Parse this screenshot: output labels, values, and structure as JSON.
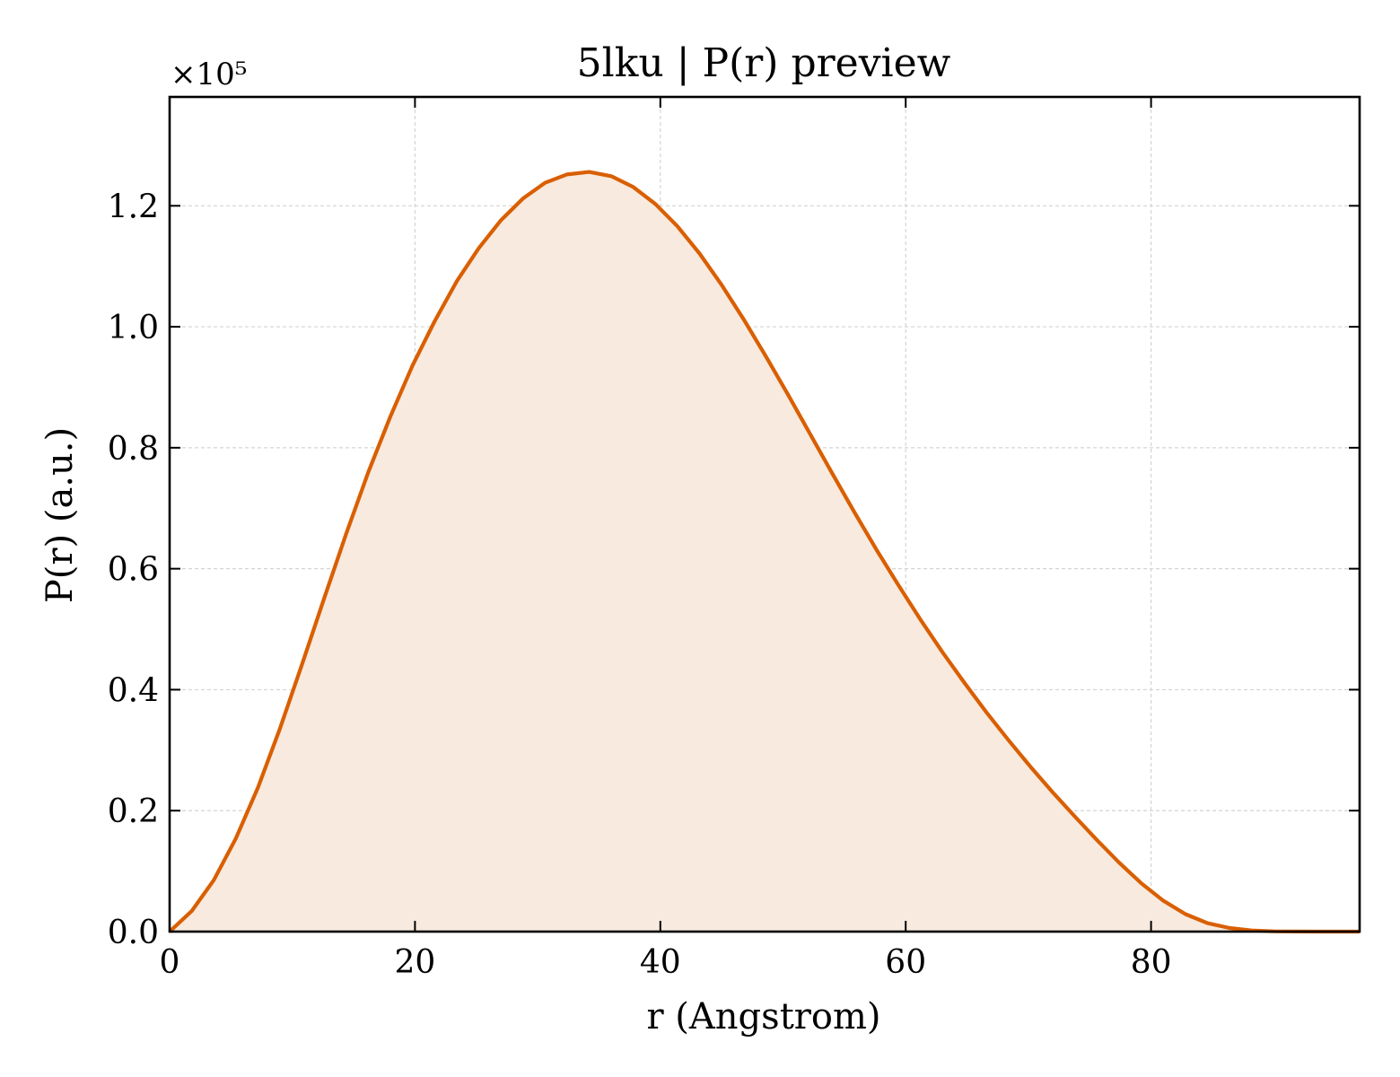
{
  "chart_data": {
    "type": "area",
    "title": "5lku | P(r) preview",
    "xlabel": "r (Angstrom)",
    "ylabel": "P(r) (a.u.)",
    "y_multiplier_label": "×10⁵",
    "xlim": [
      0,
      97
    ],
    "ylim": [
      0,
      1.38
    ],
    "y_scale": 100000,
    "xticks": [
      0,
      20,
      40,
      60,
      80
    ],
    "xtick_labels": [
      "0",
      "20",
      "40",
      "60",
      "80"
    ],
    "yticks": [
      0.0,
      0.2,
      0.4,
      0.6,
      0.8,
      1.0,
      1.2
    ],
    "ytick_labels": [
      "0.0",
      "0.2",
      "0.4",
      "0.6",
      "0.8",
      "1.0",
      "1.2"
    ],
    "grid": true,
    "line_color": "#d95f02",
    "fill_color": "#f8eadf",
    "series": [
      {
        "x": [
          0,
          1.8,
          3.6,
          5.4,
          7.2,
          9.0,
          10.8,
          12.6,
          14.4,
          16.2,
          18.0,
          19.8,
          21.6,
          23.4,
          25.2,
          27.0,
          28.8,
          30.6,
          32.4,
          34.2,
          36.0,
          37.8,
          39.6,
          41.4,
          43.2,
          45.0,
          46.8,
          48.6,
          50.4,
          52.2,
          54.0,
          55.8,
          57.6,
          59.4,
          61.2,
          63.0,
          64.8,
          66.6,
          68.4,
          70.2,
          72.0,
          73.8,
          75.6,
          77.4,
          79.2,
          81.0,
          82.8,
          84.6,
          86.4,
          88.2,
          90.0,
          91.8,
          93.6,
          95.4,
          97.0
        ],
        "y": [
          0.0,
          0.034,
          0.085,
          0.154,
          0.238,
          0.336,
          0.442,
          0.551,
          0.658,
          0.76,
          0.852,
          0.936,
          1.009,
          1.075,
          1.13,
          1.176,
          1.212,
          1.238,
          1.252,
          1.256,
          1.249,
          1.231,
          1.203,
          1.166,
          1.121,
          1.069,
          1.012,
          0.951,
          0.888,
          0.823,
          0.758,
          0.694,
          0.632,
          0.573,
          0.516,
          0.462,
          0.411,
          0.362,
          0.316,
          0.272,
          0.23,
          0.19,
          0.151,
          0.114,
          0.08,
          0.051,
          0.029,
          0.014,
          0.006,
          0.002,
          0.0005,
          0.0001,
          0.0,
          0.0,
          0.0
        ]
      }
    ]
  }
}
